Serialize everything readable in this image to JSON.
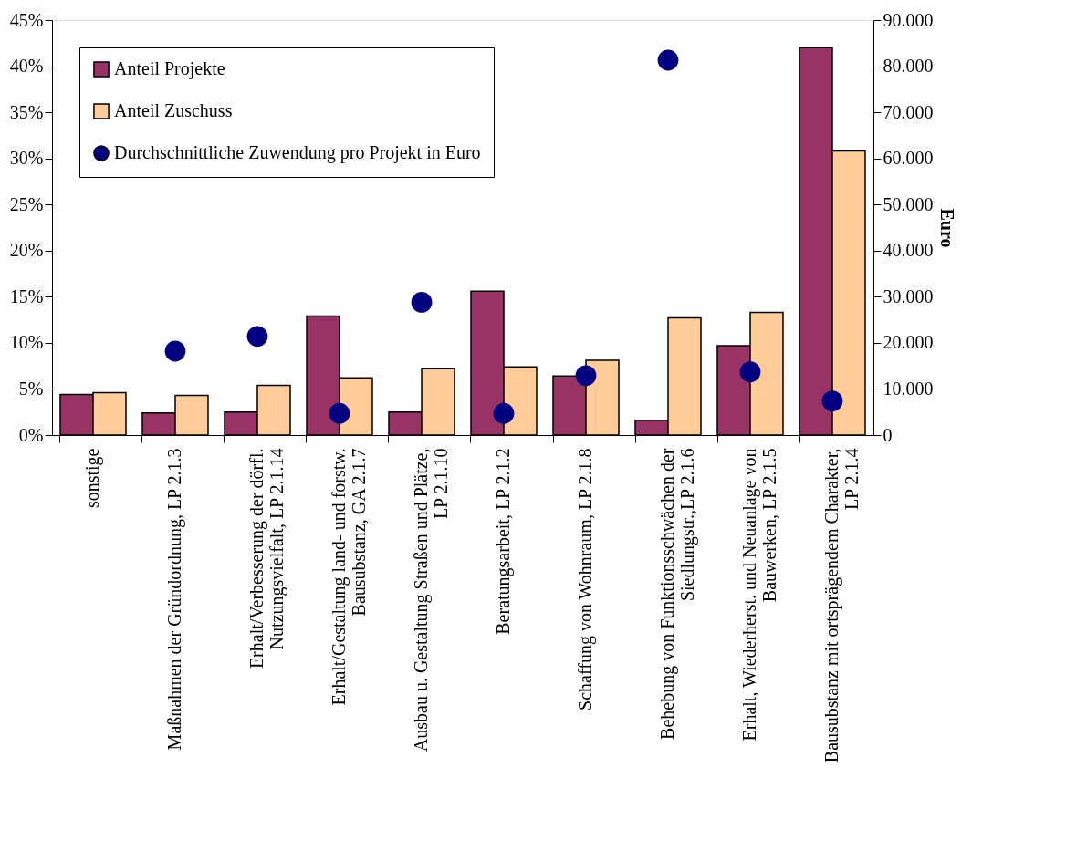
{
  "chart_data": {
    "type": "bar",
    "categories": [
      "sonstige",
      "Maßnahmen der Gründordnung, LP 2.1.3",
      "Erhalt/Verbesserung der dörfl.\nNutzungsvielfalt, LP 2.1.14",
      "Erhalt/Gestaltung land- und forstw.\nBausubstanz, GA 2.1.7",
      "Ausbau u. Gestaltung Straßen und Plätze,\nLP 2.1.10",
      "Beratungsarbeit, LP 2.1.2",
      "Schaffung von Wohnraum, LP 2.1.8",
      "Behebung von Funktionsschwächen der\nSiedlungstr.,LP 2.1.6",
      "Erhalt, Wiederherst. und Neuanlage von\nBauwerken, LP 2.1.5",
      "Bausubstanz mit ortsprägendem Charakter,\nLP 2.1.4"
    ],
    "series": [
      {
        "name": "Anteil Projekte",
        "color": "#993366",
        "values": [
          4.4,
          2.4,
          2.5,
          12.9,
          2.5,
          15.6,
          6.4,
          1.6,
          9.7,
          42.0
        ]
      },
      {
        "name": "Anteil Zuschuss",
        "color": "#ffcc99",
        "values": [
          4.6,
          4.3,
          5.4,
          6.2,
          7.2,
          7.4,
          8.1,
          12.7,
          13.3,
          30.8
        ]
      },
      {
        "name": "Durchschnittliche Zuwendung pro Projekt in Euro",
        "type": "scatter",
        "axis": "y2",
        "color": "#000080",
        "values": [
          null,
          18200,
          21400,
          4700,
          28800,
          4700,
          12900,
          81300,
          13700,
          7400
        ]
      }
    ],
    "y2label": "Euro",
    "ylim": [
      0,
      45
    ],
    "yticks": [
      {
        "value": 0,
        "label": "0%"
      },
      {
        "value": 5,
        "label": "5%"
      },
      {
        "value": 10,
        "label": "10%"
      },
      {
        "value": 15,
        "label": "15%"
      },
      {
        "value": 20,
        "label": "20%"
      },
      {
        "value": 25,
        "label": "25%"
      },
      {
        "value": 30,
        "label": "30%"
      },
      {
        "value": 35,
        "label": "35%"
      },
      {
        "value": 40,
        "label": "40%"
      },
      {
        "value": 45,
        "label": "45%"
      }
    ],
    "y2lim": [
      0,
      90000
    ],
    "y2ticks": [
      0,
      {
        "value": 10000,
        "label": "10.000"
      },
      {
        "value": 20000,
        "label": "20.000"
      },
      {
        "value": 30000,
        "label": "30.000"
      },
      {
        "value": 40000,
        "label": "40.000"
      },
      {
        "value": 50000,
        "label": "50.000"
      },
      {
        "value": 60000,
        "label": "60.000"
      },
      {
        "value": 70000,
        "label": "70.000"
      },
      {
        "value": 80000,
        "label": "80.000"
      },
      {
        "value": 90000,
        "label": "90.000"
      }
    ],
    "legend": "top left",
    "grid": false,
    "marker": "circle"
  }
}
